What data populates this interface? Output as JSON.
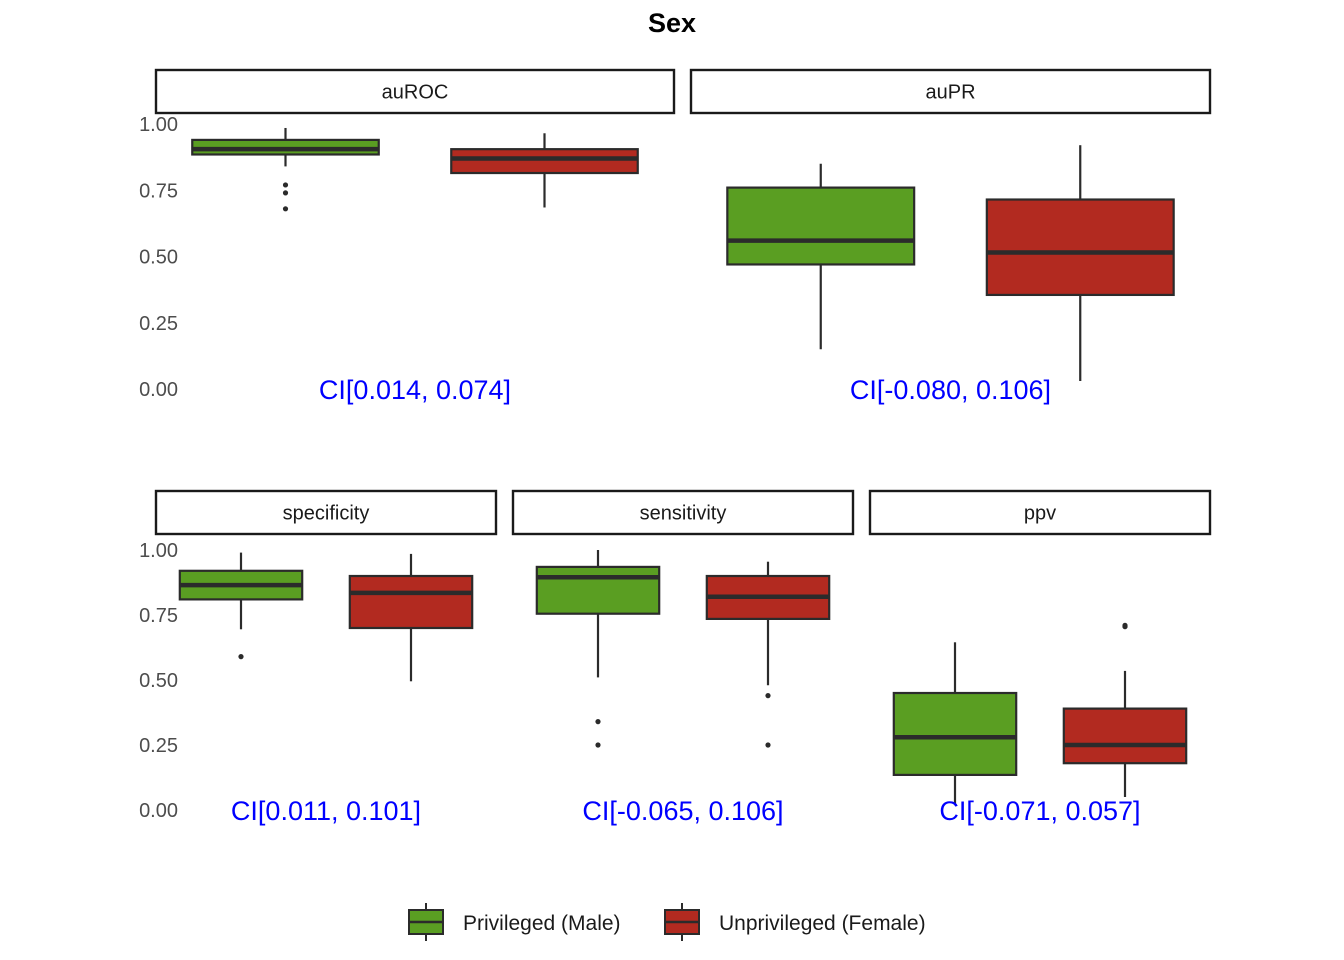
{
  "chart_data": {
    "type": "boxplot",
    "title": "Sex",
    "xlabel": "",
    "ylabel": "",
    "ylim": [
      0,
      1.05
    ],
    "yticks": [
      "0.00",
      "0.25",
      "0.50",
      "0.75",
      "1.00"
    ],
    "yticks_values": [
      0,
      0.25,
      0.5,
      0.75,
      1.0
    ],
    "grid": false,
    "legend": {
      "position": "bottom",
      "entries": [
        {
          "name": "Privileged (Male)",
          "color": "#5a9e22"
        },
        {
          "name": "Unprivileged (Female)",
          "color": "#b22a20"
        }
      ]
    },
    "ci_color": "#0000ff",
    "panels": [
      {
        "label": "auROC",
        "ci": "CI[0.014, 0.074]",
        "boxes": [
          {
            "group": "Privileged (Male)",
            "min": 0.84,
            "q1": 0.885,
            "median": 0.905,
            "q3": 0.94,
            "max": 0.985,
            "outliers": [
              0.77,
              0.74,
              0.68
            ]
          },
          {
            "group": "Unprivileged (Female)",
            "min": 0.685,
            "q1": 0.815,
            "median": 0.87,
            "q3": 0.905,
            "max": 0.965,
            "outliers": []
          }
        ]
      },
      {
        "label": "auPR",
        "ci": "CI[-0.080, 0.106]",
        "boxes": [
          {
            "group": "Privileged (Male)",
            "min": 0.15,
            "q1": 0.47,
            "median": 0.56,
            "q3": 0.76,
            "max": 0.85,
            "outliers": []
          },
          {
            "group": "Unprivileged (Female)",
            "min": 0.03,
            "q1": 0.355,
            "median": 0.515,
            "q3": 0.715,
            "max": 0.92,
            "outliers": []
          }
        ]
      },
      {
        "label": "specificity",
        "ci": "CI[0.011, 0.101]",
        "boxes": [
          {
            "group": "Privileged (Male)",
            "min": 0.695,
            "q1": 0.81,
            "median": 0.865,
            "q3": 0.92,
            "max": 0.99,
            "outliers": [
              0.59
            ]
          },
          {
            "group": "Unprivileged (Female)",
            "min": 0.495,
            "q1": 0.7,
            "median": 0.835,
            "q3": 0.9,
            "max": 0.985,
            "outliers": []
          }
        ]
      },
      {
        "label": "sensitivity",
        "ci": "CI[-0.065, 0.106]",
        "boxes": [
          {
            "group": "Privileged (Male)",
            "min": 0.51,
            "q1": 0.755,
            "median": 0.895,
            "q3": 0.935,
            "max": 1.0,
            "outliers": [
              0.34,
              0.25
            ]
          },
          {
            "group": "Unprivileged (Female)",
            "min": 0.48,
            "q1": 0.735,
            "median": 0.82,
            "q3": 0.9,
            "max": 0.955,
            "outliers": [
              0.44,
              0.25
            ]
          }
        ]
      },
      {
        "label": "ppv",
        "ci": "CI[-0.071, 0.057]",
        "boxes": [
          {
            "group": "Privileged (Male)",
            "min": 0.02,
            "q1": 0.135,
            "median": 0.28,
            "q3": 0.45,
            "max": 0.645,
            "outliers": []
          },
          {
            "group": "Unprivileged (Female)",
            "min": 0.05,
            "q1": 0.18,
            "median": 0.25,
            "q3": 0.39,
            "max": 0.535,
            "outliers": [
              0.705,
              0.71
            ]
          }
        ]
      }
    ]
  }
}
